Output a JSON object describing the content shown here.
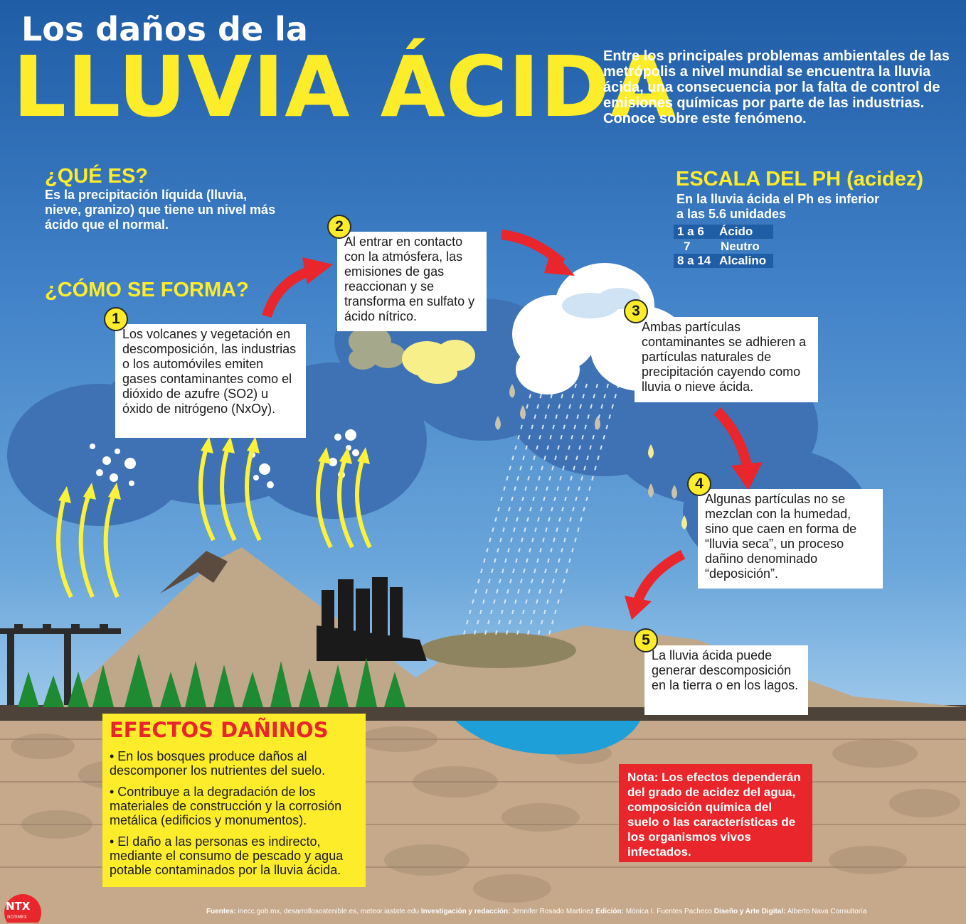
{
  "title": {
    "line1": "Los daños de la",
    "line2": "LLUVIA ÁCIDA"
  },
  "intro": "Entre los principales problemas ambientales de las metrópolis a nivel mundial se encuentra la lluvia ácida, una consecuencia por la falta de control de emisiones químicas por parte de las industrias. Conoce sobre este fenómeno.",
  "que_es": {
    "heading": "¿QUÉ ES?",
    "text": "Es la precipitación líquida (lluvia, nieve, granizo) que tiene un nivel más ácido que el normal."
  },
  "como_se_forma": {
    "heading": "¿CÓMO SE FORMA?"
  },
  "steps": [
    {
      "num": "1",
      "text": "Los volcanes y vegetación en descomposición, las industrias o los automóviles emiten gases contaminantes como el dióxido de azufre (SO2) u óxido de nitrógeno (NxOy)."
    },
    {
      "num": "2",
      "text": "Al entrar en contacto con la atmósfera, las emisiones de gas reaccionan y se transforma en sulfato y ácido nítrico."
    },
    {
      "num": "3",
      "text": "Ambas partículas contaminantes se adhieren a partículas naturales de precipitación cayendo como lluvia o nieve ácida."
    },
    {
      "num": "4",
      "text": "Algunas partículas no se mezclan con la humedad, sino que caen en forma de “lluvia seca”, un proceso dañino denominado “deposición”."
    },
    {
      "num": "5",
      "text": "La lluvia ácida puede generar descomposición en la tierra o en los lagos."
    }
  ],
  "ph_scale": {
    "heading": "ESCALA DEL PH (acidez)",
    "subtitle": "En la lluvia ácida el Ph es inferior a las 5.6 unidades",
    "rows": [
      {
        "range": "1 a 6",
        "label": "Ácido"
      },
      {
        "range": "7",
        "label": "Neutro"
      },
      {
        "range": "8 a 14",
        "label": "Alcalino"
      }
    ]
  },
  "efectos": {
    "heading": "EFECTOS DAÑINOS",
    "items": [
      "• En los bosques produce daños al descomponer los nutrientes del suelo.",
      "• Contribuye a la degradación de los materiales de construcción y la corrosión metálica (edificios y monumentos).",
      "• El daño a las personas es indirecto, mediante el consumo de pescado y agua potable contaminados por la lluvia ácida."
    ]
  },
  "nota": "Nota: Los efectos dependerán del grado de acidez del agua, composición química del suelo o las características de los organismos vivos infectados.",
  "credits": {
    "fuentes_label": "Fuentes:",
    "fuentes": "inecc.gob.mx, desarrollosostenible.es, meteor.iastate.edu",
    "investigacion_label": "Investigación y redacción:",
    "investigacion": "Jennifer Rosado Martínez",
    "edicion_label": "Edición:",
    "edicion": "Mónica I. Fuentes Pacheco",
    "diseno_label": "Diseño y Arte Digital:",
    "diseno": "Alberto Nava Consultoría"
  },
  "logo": {
    "text": "NTX",
    "subtext": "NOTIMEX"
  },
  "colors": {
    "sky": "#3f7fc6",
    "yellow": "#fcec2a",
    "red": "#e8262b",
    "ground": "#c6a88a",
    "mountain": "#bfa78a"
  }
}
